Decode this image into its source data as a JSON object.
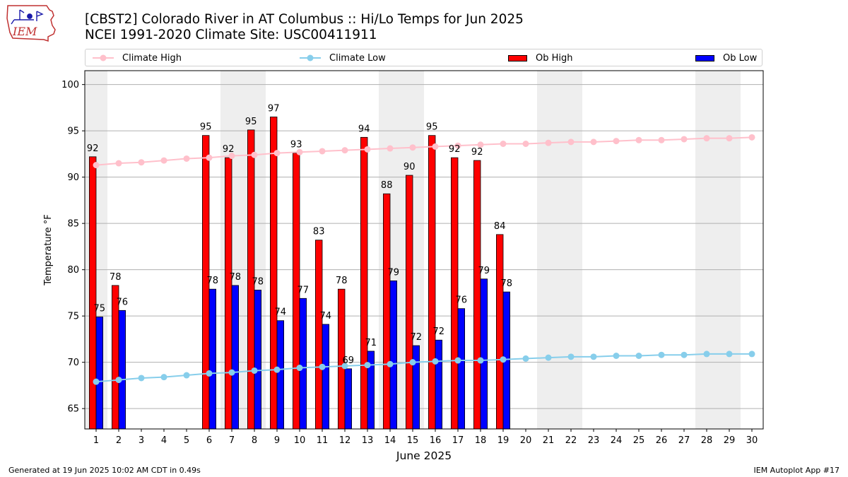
{
  "header": {
    "logo_text": "IEM",
    "title": "[CBST2] Colorado River in AT Columbus :: Hi/Lo Temps for Jun 2025",
    "subtitle": "NCEI 1991-2020 Climate Site: USC00411911"
  },
  "legend": {
    "climate_high": "Climate High",
    "climate_low": "Climate Low",
    "ob_high": "Ob High",
    "ob_low": "Ob Low"
  },
  "colors": {
    "climate_high": "#ffc0cb",
    "climate_low": "#87ceeb",
    "ob_high": "#ff0000",
    "ob_low": "#0000ff",
    "weekend_shade": "#eeeeee",
    "grid": "#b0b0b0"
  },
  "chart_data": {
    "type": "bar",
    "xlabel": "June 2025",
    "ylabel": "Temperature °F",
    "ylim": [
      62.8,
      101.5
    ],
    "yticks": [
      65,
      70,
      75,
      80,
      85,
      90,
      95,
      100
    ],
    "xlim": [
      0.5,
      30.5
    ],
    "categories": [
      1,
      2,
      3,
      4,
      5,
      6,
      7,
      8,
      9,
      10,
      11,
      12,
      13,
      14,
      15,
      16,
      17,
      18,
      19,
      20,
      21,
      22,
      23,
      24,
      25,
      26,
      27,
      28,
      29,
      30
    ],
    "weekend_days": [
      1,
      7,
      8,
      14,
      15,
      21,
      22,
      28,
      29
    ],
    "grid": "horizontal",
    "series": [
      {
        "name": "Ob High",
        "kind": "bar",
        "values": [
          92.2,
          78.3,
          null,
          null,
          null,
          94.5,
          92.1,
          95.1,
          96.5,
          92.6,
          83.2,
          77.9,
          94.3,
          88.2,
          90.2,
          94.5,
          92.1,
          91.8,
          83.8,
          null,
          null,
          null,
          null,
          null,
          null,
          null,
          null,
          null,
          null,
          null
        ],
        "labels": [
          "92",
          "78",
          null,
          null,
          null,
          "95",
          "92",
          "95",
          "97",
          "93",
          "83",
          "78",
          "94",
          "88",
          "90",
          "95",
          "92",
          "92",
          "84",
          null,
          null,
          null,
          null,
          null,
          null,
          null,
          null,
          null,
          null,
          null
        ]
      },
      {
        "name": "Ob Low",
        "kind": "bar",
        "values": [
          74.9,
          75.6,
          null,
          null,
          null,
          77.9,
          78.3,
          77.8,
          74.5,
          76.9,
          74.1,
          69.3,
          71.2,
          78.8,
          71.8,
          72.4,
          75.8,
          79.0,
          77.6,
          null,
          null,
          null,
          null,
          null,
          null,
          null,
          null,
          null,
          null,
          null
        ],
        "labels": [
          "75",
          "76",
          null,
          null,
          null,
          "78",
          "78",
          "78",
          "74",
          "77",
          "74",
          "69",
          "71",
          "79",
          "72",
          "72",
          "76",
          "79",
          "78",
          null,
          null,
          null,
          null,
          null,
          null,
          null,
          null,
          null,
          null,
          null
        ]
      },
      {
        "name": "Climate High",
        "kind": "line",
        "values": [
          91.3,
          91.5,
          91.6,
          91.8,
          92.0,
          92.1,
          92.3,
          92.4,
          92.6,
          92.7,
          92.8,
          92.9,
          93.0,
          93.1,
          93.2,
          93.3,
          93.4,
          93.5,
          93.6,
          93.6,
          93.7,
          93.8,
          93.8,
          93.9,
          94.0,
          94.0,
          94.1,
          94.2,
          94.2,
          94.3
        ]
      },
      {
        "name": "Climate Low",
        "kind": "line",
        "values": [
          67.9,
          68.1,
          68.3,
          68.4,
          68.6,
          68.8,
          68.9,
          69.1,
          69.2,
          69.4,
          69.5,
          69.6,
          69.7,
          69.8,
          70.0,
          70.1,
          70.2,
          70.2,
          70.3,
          70.4,
          70.5,
          70.6,
          70.6,
          70.7,
          70.7,
          70.8,
          70.8,
          70.9,
          70.9,
          70.9
        ]
      }
    ]
  },
  "footer": {
    "generated": "Generated at 19 Jun 2025 10:02 AM CDT in 0.49s",
    "app": "IEM Autoplot App #17"
  }
}
